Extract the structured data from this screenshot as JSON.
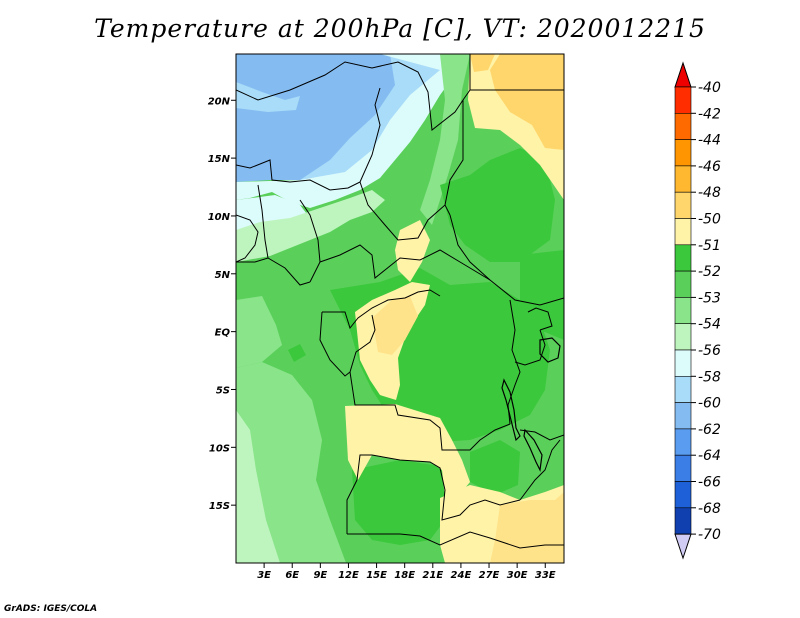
{
  "title": "Temperature at 200hPa [C], VT: 2020012215",
  "credit": "GrADS: IGES/COLA",
  "map": {
    "lon_range": [
      0,
      35
    ],
    "lat_range": [
      -20,
      24
    ],
    "lat_ticks": [
      {
        "value": 20,
        "label": "20N"
      },
      {
        "value": 15,
        "label": "15N"
      },
      {
        "value": 10,
        "label": "10N"
      },
      {
        "value": 5,
        "label": "5N"
      },
      {
        "value": 0,
        "label": "EQ"
      },
      {
        "value": -5,
        "label": "5S"
      },
      {
        "value": -10,
        "label": "10S"
      },
      {
        "value": -15,
        "label": "15S"
      }
    ],
    "lon_ticks": [
      {
        "value": 3,
        "label": "3E"
      },
      {
        "value": 6,
        "label": "6E"
      },
      {
        "value": 9,
        "label": "9E"
      },
      {
        "value": 12,
        "label": "12E"
      },
      {
        "value": 15,
        "label": "15E"
      },
      {
        "value": 18,
        "label": "18E"
      },
      {
        "value": 21,
        "label": "21E"
      },
      {
        "value": 24,
        "label": "24E"
      },
      {
        "value": 27,
        "label": "27E"
      },
      {
        "value": 30,
        "label": "30E"
      },
      {
        "value": 33,
        "label": "33E"
      }
    ]
  },
  "colorbar": {
    "levels": [
      {
        "label": "-40",
        "color": "#ff2d00"
      },
      {
        "label": "-42",
        "color": "#ff6a00"
      },
      {
        "label": "-44",
        "color": "#ff9500"
      },
      {
        "label": "-46",
        "color": "#ffb830"
      },
      {
        "label": "-48",
        "color": "#ffd66b"
      },
      {
        "label": "-50",
        "color": "#fff3a8"
      },
      {
        "label": "-51",
        "color": "#3cc83c"
      },
      {
        "label": "-52",
        "color": "#5ad05a"
      },
      {
        "label": "-53",
        "color": "#8ae48a"
      },
      {
        "label": "-54",
        "color": "#bef5be"
      },
      {
        "label": "-56",
        "color": "#dcfbfb"
      },
      {
        "label": "-58",
        "color": "#a8dcf8"
      },
      {
        "label": "-60",
        "color": "#84bcf2"
      },
      {
        "label": "-62",
        "color": "#5a9cf0"
      },
      {
        "label": "-64",
        "color": "#3a7ee6"
      },
      {
        "label": "-66",
        "color": "#1e60d8"
      },
      {
        "label": "-68",
        "color": "#1040b0"
      },
      {
        "label": "-70",
        "color": "#0a1f8a"
      }
    ],
    "over_color": "#ee0000",
    "under_color": "#d0ccf4"
  },
  "field_colors": {
    "blue": "#84bcf2",
    "lightblue": "#a8dcf8",
    "pale": "#dcfbfb",
    "mint": "#bef5be",
    "lightgreen": "#8ae48a",
    "green": "#5ad05a",
    "darkgreen": "#3cc83c",
    "yellow": "#fff3a8",
    "tan": "#ffe38a",
    "orange": "#ffd66b"
  }
}
